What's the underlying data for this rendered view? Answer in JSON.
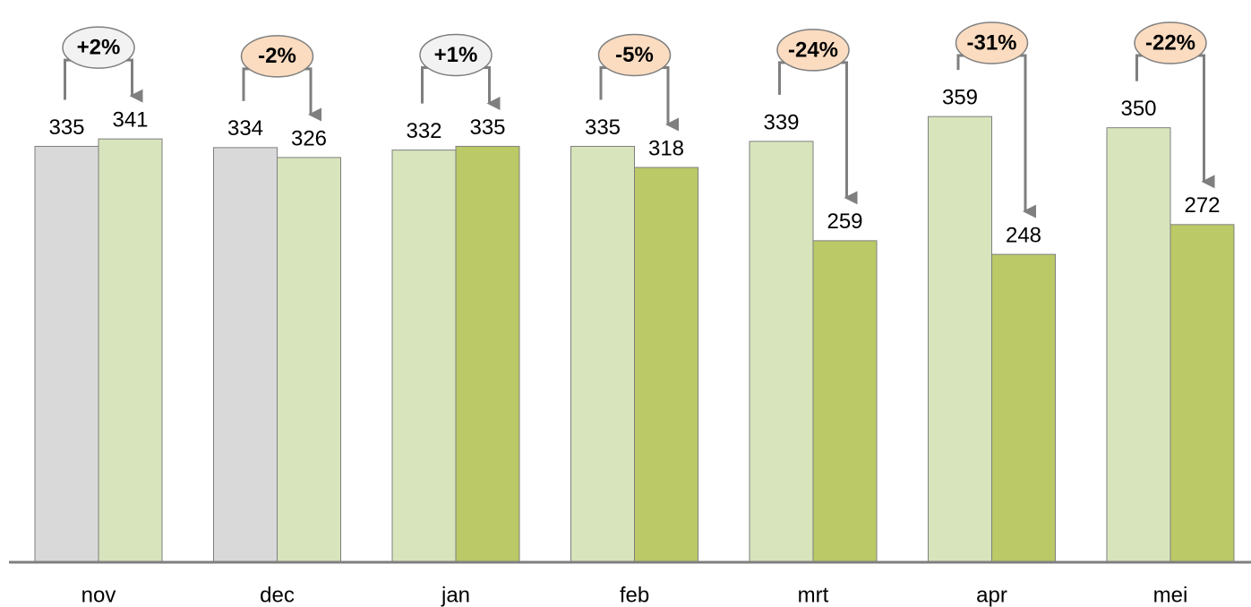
{
  "chart_data": {
    "type": "bar",
    "categories": [
      "nov",
      "dec",
      "jan",
      "feb",
      "mrt",
      "apr",
      "mei"
    ],
    "series": [
      {
        "values": [
          335,
          334,
          332,
          335,
          339,
          359,
          350
        ],
        "colors": [
          "#d9d9d9",
          "#d9d9d9",
          "#d8e4bc",
          "#d8e4bc",
          "#d8e4bc",
          "#d8e4bc",
          "#d8e4bc"
        ]
      },
      {
        "values": [
          341,
          326,
          335,
          318,
          259,
          248,
          272
        ],
        "colors": [
          "#d8e4bc",
          "#d8e4bc",
          "#bbc966",
          "#bbc966",
          "#bbc966",
          "#bbc966",
          "#bbc966"
        ]
      }
    ],
    "annotations": [
      "+2%",
      "-2%",
      "+1%",
      "-5%",
      "-24%",
      "-31%",
      "-22%"
    ],
    "annotation_colors": [
      "#f2f2f2",
      "#fbdcc0",
      "#f2f2f2",
      "#fbdcc0",
      "#fbdcc0",
      "#fbdcc0",
      "#fbdcc0"
    ],
    "ylim": [
      0,
      450
    ]
  }
}
